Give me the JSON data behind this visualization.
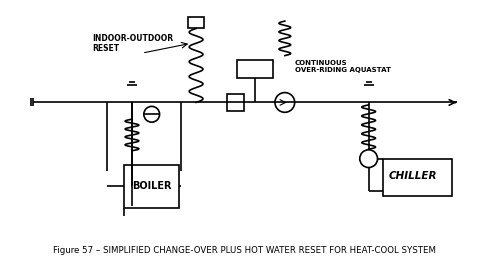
{
  "title": "Figure 57 – SIMPLIFIED CHANGE-OVER PLUS HOT WATER RESET FOR HEAT-COOL SYSTEM",
  "title_fontsize": 7,
  "bg_color": "#ffffff",
  "line_color": "#000000",
  "text_color": "#000000",
  "label_indoor_outdoor": "INDOOR-OUTDOOR\nRESET",
  "label_continuous": "CONTINUOUS\nOVER-RIDING AQUASTAT",
  "label_boiler": "BOILER",
  "label_chiller": "CHILLER"
}
